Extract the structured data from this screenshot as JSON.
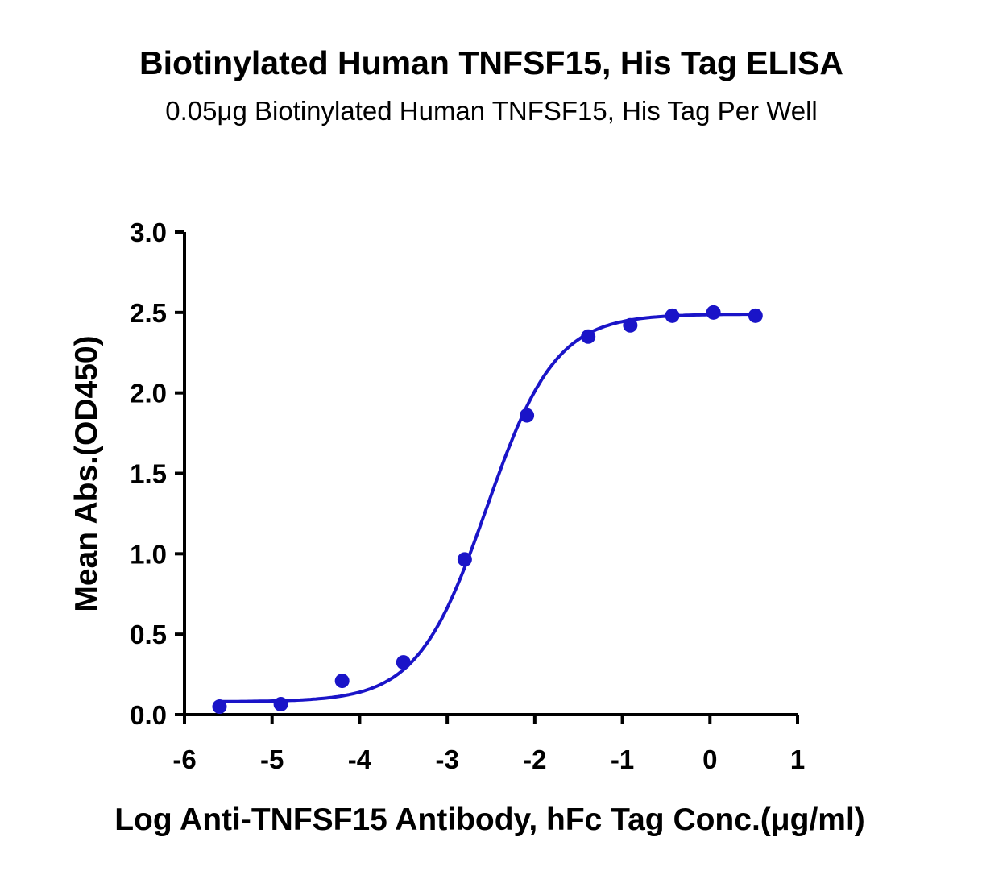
{
  "chart_data": {
    "type": "scatter",
    "title": "Biotinylated Human TNFSF15, His Tag ELISA",
    "subtitle": "0.05μg Biotinylated Human TNFSF15, His Tag Per Well",
    "xlabel": "Log Anti-TNFSF15 Antibody, hFc Tag Conc.(μg/ml)",
    "ylabel": "Mean Abs.(OD450)",
    "xlim": [
      -6,
      1
    ],
    "ylim": [
      0,
      3
    ],
    "xticks": [
      "-6",
      "-5",
      "-4",
      "-3",
      "-2",
      "-1",
      "0",
      "1"
    ],
    "yticks": [
      "0.0",
      "0.5",
      "1.0",
      "1.5",
      "2.0",
      "2.5",
      "3.0"
    ],
    "grid": false,
    "color": "#1a14c8",
    "series": [
      {
        "x": [
          -5.6,
          -4.9,
          -4.2,
          -3.5,
          -2.8,
          -2.09,
          -1.39,
          -0.91,
          -0.43,
          0.04,
          0.52
        ],
        "y": [
          0.05,
          0.065,
          0.21,
          0.325,
          0.965,
          1.86,
          2.35,
          2.42,
          2.48,
          2.5,
          2.48
        ],
        "fit": {
          "model": "4PL",
          "bottom": 0.08,
          "top": 2.49,
          "logEC50": -2.55,
          "hill": 1.1
        }
      }
    ]
  }
}
